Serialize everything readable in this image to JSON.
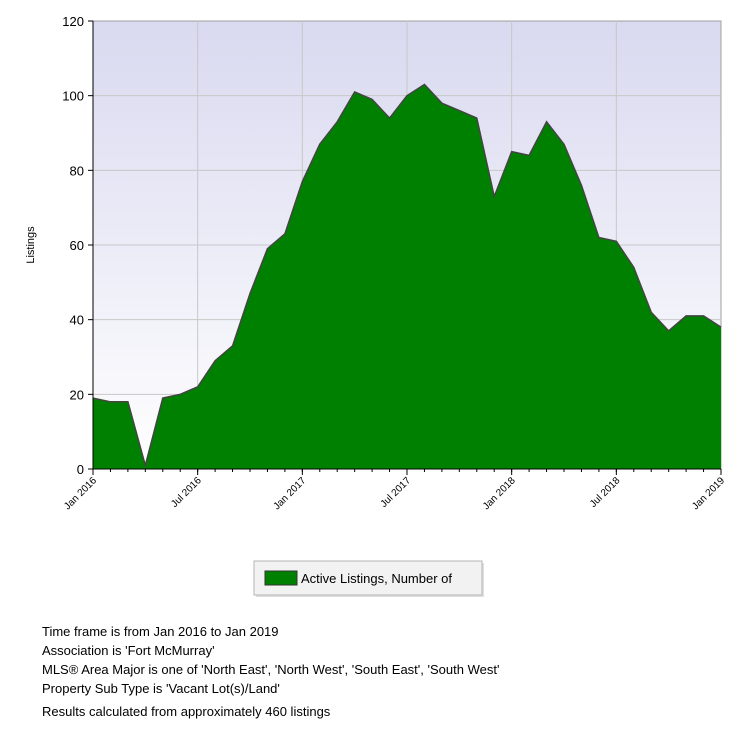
{
  "chart_data": {
    "type": "area",
    "ylabel": "Listings",
    "ylim": [
      0,
      120
    ],
    "yticks": [
      "0",
      "20",
      "40",
      "60",
      "80",
      "100",
      "120"
    ],
    "grid": true,
    "legend_placement": "bottom-center",
    "colors": {
      "fill": "#008000",
      "line": "#444444",
      "plot_bg_top": "#d9d9f0",
      "plot_bg_bottom": "#ffffff",
      "grid": "#c8c8c8"
    },
    "xticks": [
      "Jan 2016",
      "Jul 2016",
      "Jan 2017",
      "Jul 2017",
      "Jan 2018",
      "Jul 2018",
      "Jan 2019"
    ],
    "x": [
      "Jan 2016",
      "Feb 2016",
      "Mar 2016",
      "Apr 2016",
      "May 2016",
      "Jun 2016",
      "Jul 2016",
      "Aug 2016",
      "Sep 2016",
      "Oct 2016",
      "Nov 2016",
      "Dec 2016",
      "Jan 2017",
      "Feb 2017",
      "Mar 2017",
      "Apr 2017",
      "May 2017",
      "Jun 2017",
      "Jul 2017",
      "Aug 2017",
      "Sep 2017",
      "Oct 2017",
      "Nov 2017",
      "Dec 2017",
      "Jan 2018",
      "Feb 2018",
      "Mar 2018",
      "Apr 2018",
      "May 2018",
      "Jun 2018",
      "Jul 2018",
      "Aug 2018",
      "Sep 2018",
      "Oct 2018",
      "Nov 2018",
      "Dec 2018",
      "Jan 2019"
    ],
    "series": [
      {
        "name": "Active Listings, Number of",
        "values": [
          19,
          18,
          18,
          1,
          19,
          20,
          22,
          29,
          33,
          47,
          59,
          63,
          77,
          87,
          93,
          101,
          99,
          94,
          100,
          103,
          98,
          96,
          94,
          73,
          85,
          84,
          93,
          87,
          76,
          62,
          61,
          54,
          42,
          37,
          41,
          41,
          38
        ]
      }
    ]
  },
  "footer": {
    "line1": "Time frame is from Jan 2016 to Jan 2019",
    "line2": "Association is 'Fort McMurray'",
    "line3": "MLS® Area Major is one of 'North East', 'North West', 'South East', 'South West'",
    "line4": "Property Sub Type is 'Vacant Lot(s)/Land'",
    "results": "Results calculated from approximately 460 listings"
  }
}
